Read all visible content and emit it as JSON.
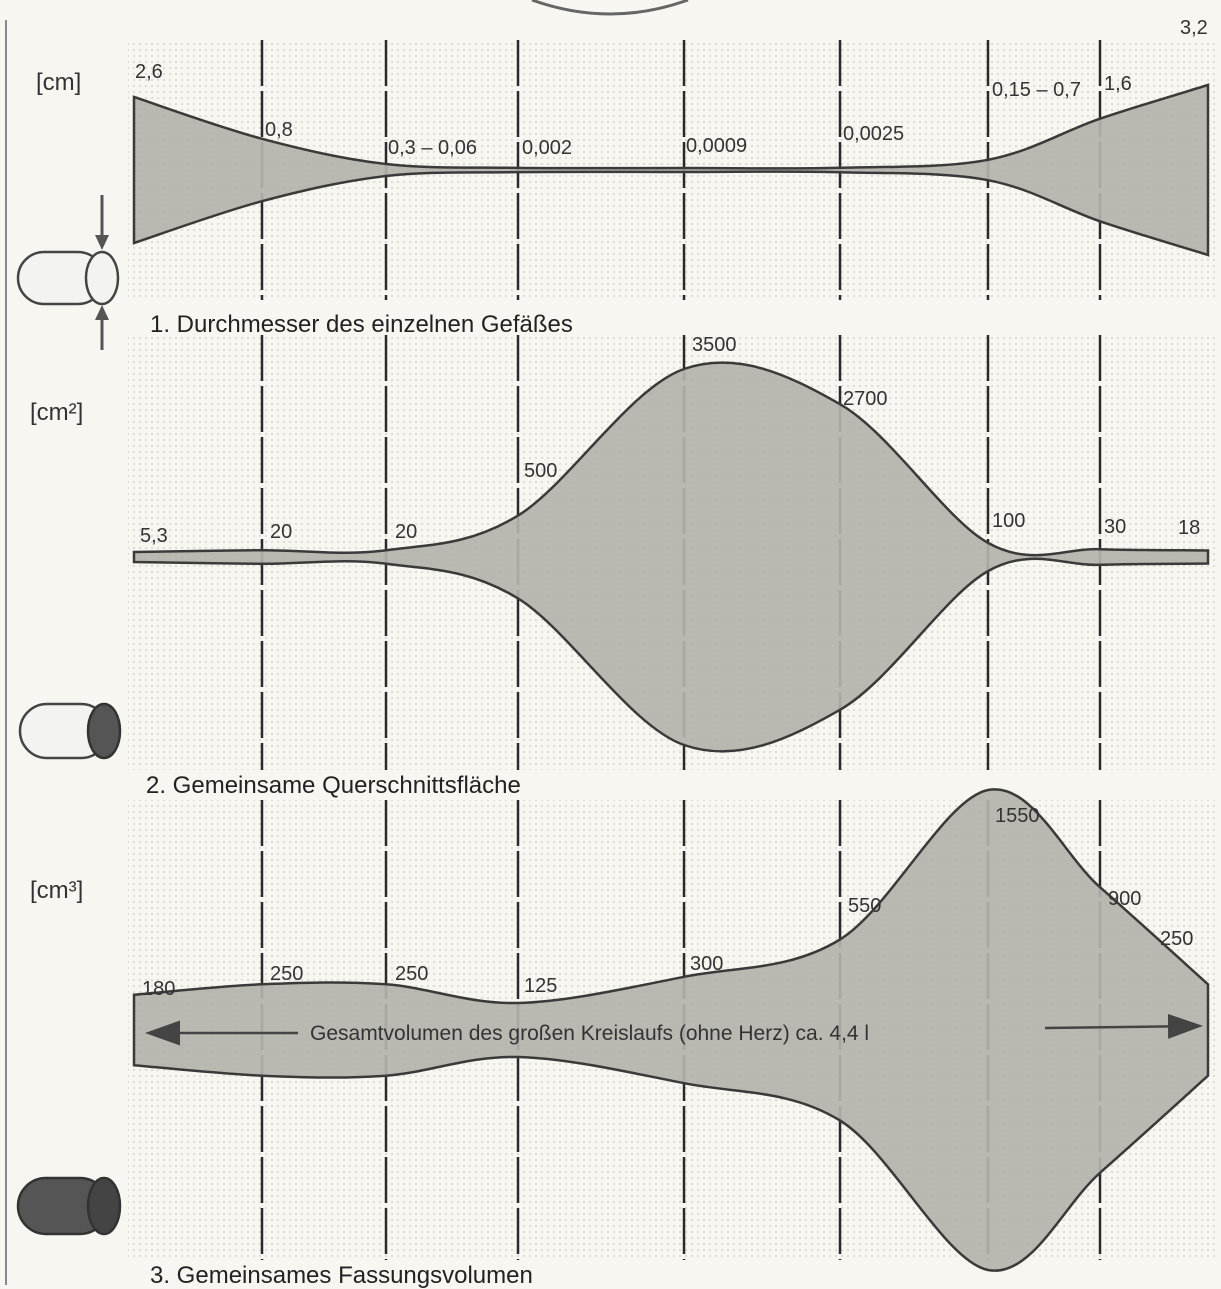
{
  "chart_data": [
    {
      "type": "area",
      "title": "1. Durchmesser des einzelnen Gefäßes",
      "ylabel": "[cm]",
      "icon": "open-tube-icon",
      "labels": [
        "2,6",
        "0,8",
        "0,3 – 0,06",
        "0,002",
        "0,0009",
        "0,0025",
        "0,15 – 0,7",
        "1,6",
        "3,2"
      ],
      "values": [
        2.6,
        0.8,
        0.06,
        0.002,
        0.0009,
        0.0025,
        0.15,
        1.6,
        3.2
      ],
      "ranges": [
        null,
        null,
        [
          0.3,
          0.06
        ],
        null,
        null,
        null,
        [
          0.15,
          0.7
        ],
        null,
        null
      ]
    },
    {
      "type": "area",
      "title": "2. Gemeinsame Querschnittsfläche",
      "ylabel": "[cm²]",
      "icon": "open-tube-shaded-end-icon",
      "labels": [
        "5,3",
        "20",
        "20",
        "500",
        "3500",
        "2700",
        "100",
        "30",
        "18"
      ],
      "values": [
        5.3,
        20,
        20,
        500,
        3500,
        2700,
        100,
        30,
        18
      ]
    },
    {
      "type": "area",
      "title": "3. Gemeinsames Fassungsvolumen",
      "ylabel": "[cm³]",
      "icon": "filled-tube-icon",
      "labels": [
        "180",
        "250",
        "250",
        "125",
        "300",
        "550",
        "1550",
        "900",
        "250"
      ],
      "values": [
        180,
        250,
        250,
        125,
        300,
        550,
        1550,
        900,
        250
      ],
      "annotation": "Gesamtvolumen des großen Kreislaufs (ohne Herz) ca. 4,4 l"
    }
  ],
  "colors": {
    "fill": "#b3b3ad",
    "outline": "#3a3a3a",
    "grid_line": "#2a2a2a",
    "paper": "#f7f6f1"
  }
}
